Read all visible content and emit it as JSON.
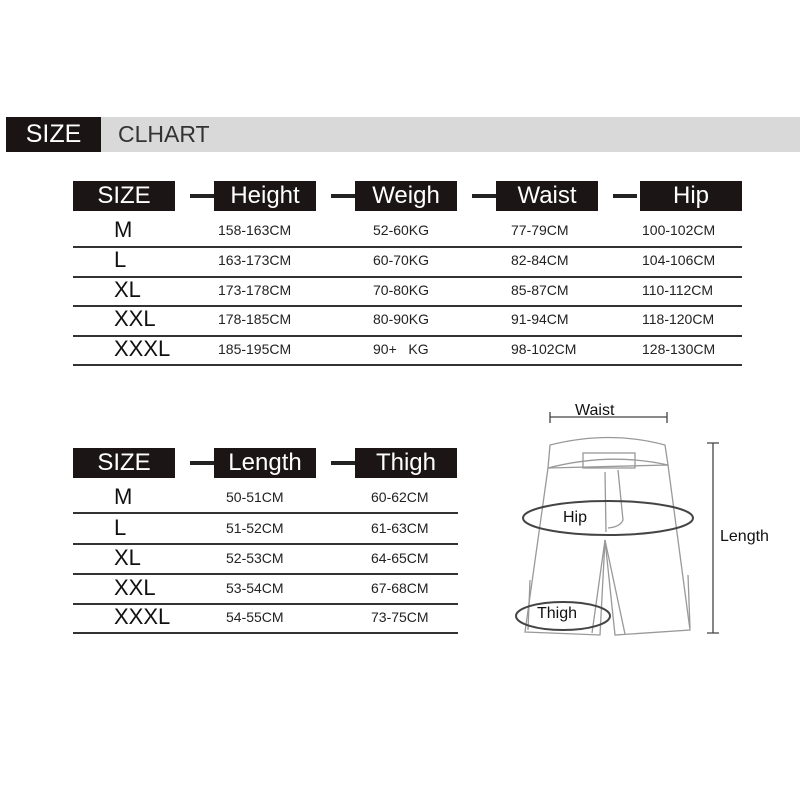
{
  "banner": {
    "size_label": "SIZE",
    "title": "CLHART"
  },
  "top_table": {
    "headers": [
      "SIZE",
      "Height",
      "Weigh",
      "Waist",
      "Hip"
    ],
    "rows": [
      [
        "M",
        "158-163CM",
        "52-60KG",
        "77-79CM",
        "100-102CM"
      ],
      [
        "L",
        "163-173CM",
        "60-70KG",
        "82-84CM",
        "104-106CM"
      ],
      [
        "XL",
        "173-178CM",
        "70-80KG",
        "85-87CM",
        "110-112CM"
      ],
      [
        "XXL",
        "178-185CM",
        "80-90KG",
        "91-94CM",
        "118-120CM"
      ],
      [
        "XXXL",
        "185-195CM",
        "90+   KG",
        "98-102CM",
        "128-130CM"
      ]
    ]
  },
  "bottom_table": {
    "headers": [
      "SIZE",
      "Length",
      "Thigh"
    ],
    "rows": [
      [
        "M",
        "50-51CM",
        "60-62CM"
      ],
      [
        "L",
        "51-52CM",
        "61-63CM"
      ],
      [
        "XL",
        "52-53CM",
        "64-65CM"
      ],
      [
        "XXL",
        "53-54CM",
        "67-68CM"
      ],
      [
        "XXXL",
        "54-55CM",
        "73-75CM"
      ]
    ]
  },
  "diagram": {
    "waist": "Waist",
    "hip": "Hip",
    "length": "Length",
    "thigh": "Thigh"
  }
}
